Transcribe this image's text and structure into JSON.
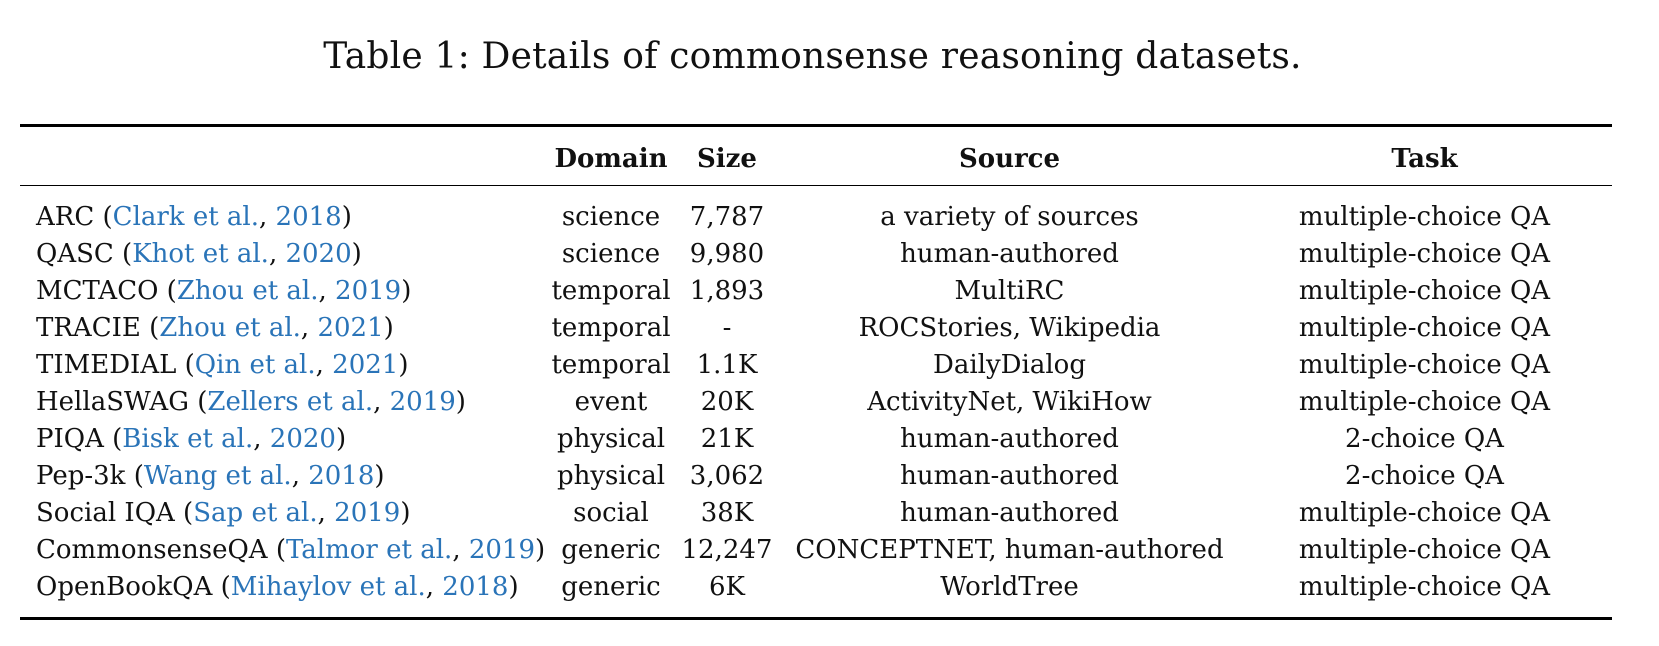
{
  "caption": "Table 1: Details of commonsense reasoning datasets.",
  "headers": {
    "name": "",
    "domain": "Domain",
    "size": "Size",
    "source": "Source",
    "task": "Task"
  },
  "rows": [
    {
      "name": "ARC",
      "cite_author": "Clark et al.",
      "cite_year": "2018",
      "domain": "science",
      "size": "7,787",
      "source": "a variety of sources",
      "task": "multiple-choice QA"
    },
    {
      "name": "QASC",
      "cite_author": "Khot et al.",
      "cite_year": "2020",
      "domain": "science",
      "size": "9,980",
      "source": "human-authored",
      "task": "multiple-choice QA"
    },
    {
      "name": "MCTACO",
      "cite_author": "Zhou et al.",
      "cite_year": "2019",
      "domain": "temporal",
      "size": "1,893",
      "source": "MultiRC",
      "task": "multiple-choice QA"
    },
    {
      "name": "TRACIE",
      "cite_author": "Zhou et al.",
      "cite_year": "2021",
      "domain": "temporal",
      "size": "-",
      "source": "ROCStories, Wikipedia",
      "task": "multiple-choice QA"
    },
    {
      "name": "TIMEDIAL",
      "cite_author": "Qin et al.",
      "cite_year": "2021",
      "domain": "temporal",
      "size": "1.1K",
      "source": "DailyDialog",
      "task": "multiple-choice QA"
    },
    {
      "name": "HellaSWAG",
      "cite_author": "Zellers et al.",
      "cite_year": "2019",
      "domain": "event",
      "size": "20K",
      "source": "ActivityNet, WikiHow",
      "task": "multiple-choice QA"
    },
    {
      "name": "PIQA",
      "cite_author": "Bisk et al.",
      "cite_year": "2020",
      "domain": "physical",
      "size": "21K",
      "source": "human-authored",
      "task": "2-choice QA"
    },
    {
      "name": "Pep-3k",
      "cite_author": "Wang et al.",
      "cite_year": "2018",
      "domain": "physical",
      "size": "3,062",
      "source": "human-authored",
      "task": "2-choice QA"
    },
    {
      "name": "Social IQA",
      "cite_author": "Sap et al.",
      "cite_year": "2019",
      "domain": "social",
      "size": "38K",
      "source": "human-authored",
      "task": "multiple-choice QA"
    },
    {
      "name": "CommonsenseQA",
      "cite_author": "Talmor et al.",
      "cite_year": "2019",
      "domain": "generic",
      "size": "12,247",
      "source": "CONCEPTNET, human-authored",
      "task": "multiple-choice QA"
    },
    {
      "name": "OpenBookQA",
      "cite_author": "Mihaylov et al.",
      "cite_year": "2018",
      "domain": "generic",
      "size": "6K",
      "source": "WorldTree",
      "task": "multiple-choice QA"
    }
  ],
  "colors": {
    "citation": "#2a74b8",
    "text": "#111111",
    "rule": "#000000"
  }
}
